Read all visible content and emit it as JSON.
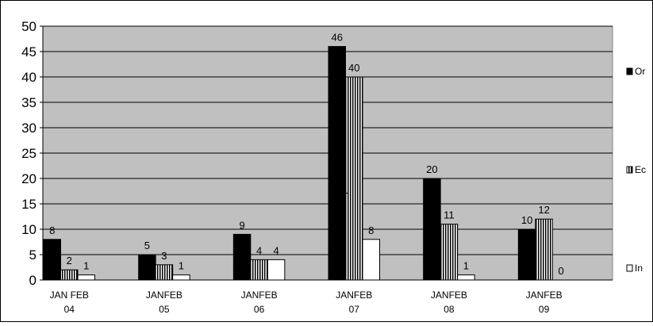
{
  "chart_data": {
    "type": "bar",
    "categories": [
      [
        "JAN FEB",
        "04"
      ],
      [
        "JANFEB",
        "05"
      ],
      [
        "JANFEB",
        "06"
      ],
      [
        "JANFEB",
        "07"
      ],
      [
        "JANFEB",
        "08"
      ],
      [
        "JANFEB",
        "09"
      ]
    ],
    "series": [
      {
        "name": "Or",
        "values": [
          8,
          5,
          9,
          46,
          20,
          10
        ],
        "fill": "solid-black"
      },
      {
        "name": "Ec",
        "values": [
          2,
          3,
          4,
          40,
          11,
          12
        ],
        "fill": "vertical-stripes"
      },
      {
        "name": "In",
        "values": [
          1,
          1,
          4,
          8,
          1,
          0
        ],
        "fill": "white"
      }
    ],
    "extra_labels": [
      {
        "text": "1"
      }
    ],
    "ylim": [
      0,
      50
    ],
    "yticks": [
      0,
      5,
      10,
      15,
      20,
      25,
      30,
      35,
      40,
      45,
      50
    ],
    "grid": true,
    "legend": "right",
    "title": "",
    "xlabel": "",
    "ylabel": "",
    "colors": {
      "plot_bg": "#c0c0c0",
      "grid": "#000000",
      "bar_dark": "#000000",
      "bar_light": "#ffffff"
    }
  }
}
